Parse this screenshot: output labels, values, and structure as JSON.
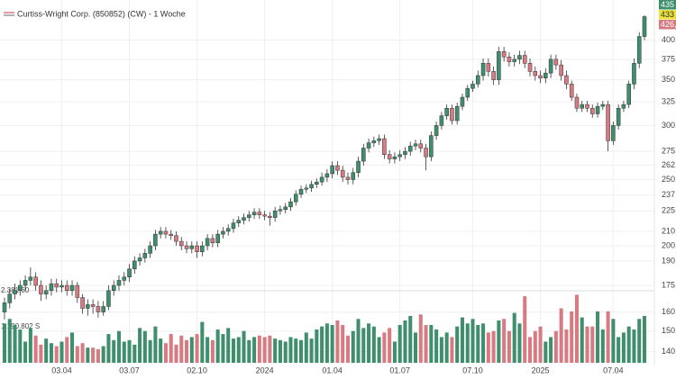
{
  "chart_data": {
    "type": "candlestick",
    "title": "Curtiss-Wright Corp. (850852) (CW) - 1 Woche",
    "categories": [
      null,
      null,
      null,
      null,
      null,
      null,
      null,
      null,
      null,
      null,
      null,
      "03.04",
      null,
      null,
      null,
      null,
      null,
      null,
      null,
      null,
      null,
      null,
      null,
      null,
      "03.07",
      null,
      null,
      null,
      null,
      null,
      null,
      null,
      null,
      null,
      null,
      null,
      null,
      "02.10",
      null,
      null,
      null,
      null,
      null,
      null,
      null,
      null,
      null,
      null,
      null,
      null,
      "2024",
      null,
      null,
      null,
      null,
      null,
      null,
      null,
      null,
      null,
      null,
      null,
      null,
      "01.04",
      null,
      null,
      null,
      null,
      null,
      null,
      null,
      null,
      null,
      null,
      null,
      null,
      "01.07",
      null,
      null,
      null,
      null,
      null,
      null,
      null,
      null,
      null,
      null,
      null,
      null,
      null,
      "07.10",
      null,
      null,
      null,
      null,
      null,
      null,
      null,
      null,
      null,
      null,
      null,
      null,
      "2025",
      null,
      null,
      null,
      null,
      null,
      null,
      null,
      null,
      null,
      null,
      null,
      null,
      null,
      "07.04",
      null,
      null,
      null,
      null,
      null,
      null
    ],
    "open": [
      160,
      165,
      170,
      172,
      175,
      178,
      180,
      175,
      170,
      172,
      176,
      174,
      175,
      172,
      175,
      168,
      162,
      164,
      163,
      160,
      163,
      172,
      175,
      178,
      180,
      185,
      190,
      192,
      195,
      200,
      208,
      210,
      208,
      207,
      203,
      200,
      198,
      200,
      196,
      200,
      205,
      202,
      208,
      210,
      212,
      216,
      218,
      220,
      222,
      224,
      222,
      221,
      220,
      225,
      226,
      228,
      232,
      238,
      242,
      243,
      246,
      248,
      252,
      255,
      262,
      258,
      252,
      250,
      256,
      266,
      278,
      283,
      285,
      287,
      272,
      268,
      270,
      272,
      275,
      280,
      282,
      278,
      270,
      290,
      300,
      310,
      318,
      305,
      320,
      330,
      340,
      345,
      355,
      370,
      360,
      350,
      385,
      378,
      372,
      375,
      380,
      370,
      360,
      355,
      352,
      358,
      375,
      368,
      355,
      345,
      330,
      318,
      322,
      318,
      312,
      320,
      322,
      285,
      300,
      318,
      322,
      345,
      370,
      405
    ],
    "high": [
      168,
      173,
      176,
      178,
      181,
      186,
      183,
      178,
      175,
      179,
      179,
      178,
      178,
      178,
      177,
      170,
      167,
      167,
      166,
      166,
      175,
      178,
      181,
      183,
      188,
      193,
      195,
      198,
      203,
      211,
      213,
      213,
      211,
      210,
      206,
      203,
      203,
      203,
      203,
      208,
      208,
      211,
      213,
      215,
      219,
      221,
      223,
      225,
      227,
      227,
      225,
      224,
      228,
      229,
      231,
      235,
      241,
      245,
      246,
      249,
      251,
      256,
      259,
      266,
      266,
      262,
      256,
      260,
      270,
      282,
      287,
      289,
      291,
      291,
      276,
      274,
      276,
      279,
      284,
      286,
      286,
      282,
      294,
      304,
      314,
      322,
      322,
      324,
      334,
      344,
      349,
      361,
      376,
      376,
      366,
      391,
      391,
      384,
      381,
      386,
      386,
      376,
      366,
      361,
      364,
      381,
      381,
      374,
      361,
      349,
      334,
      326,
      326,
      322,
      324,
      326,
      326,
      304,
      322,
      326,
      349,
      376,
      411,
      435
    ],
    "low": [
      156,
      162,
      167,
      169,
      172,
      175,
      172,
      166,
      167,
      169,
      171,
      171,
      169,
      169,
      165,
      159,
      158,
      159,
      157,
      158,
      161,
      169,
      172,
      175,
      177,
      182,
      187,
      189,
      192,
      197,
      205,
      205,
      204,
      200,
      197,
      195,
      195,
      192,
      193,
      197,
      199,
      199,
      205,
      207,
      209,
      213,
      215,
      217,
      219,
      219,
      218,
      214,
      217,
      222,
      223,
      225,
      229,
      235,
      239,
      240,
      243,
      245,
      248,
      251,
      254,
      248,
      246,
      246,
      252,
      262,
      274,
      279,
      281,
      268,
      264,
      264,
      266,
      268,
      271,
      276,
      274,
      258,
      266,
      286,
      296,
      306,
      301,
      301,
      316,
      326,
      336,
      341,
      349,
      354,
      344,
      344,
      372,
      366,
      366,
      369,
      364,
      354,
      349,
      346,
      346,
      352,
      362,
      349,
      339,
      326,
      314,
      314,
      314,
      308,
      308,
      316,
      275,
      281,
      296,
      314,
      318,
      339,
      364,
      400
    ],
    "close": [
      165,
      170,
      172,
      175,
      178,
      180,
      175,
      170,
      172,
      176,
      174,
      175,
      172,
      175,
      168,
      162,
      164,
      163,
      160,
      163,
      172,
      175,
      178,
      180,
      185,
      190,
      192,
      195,
      200,
      208,
      210,
      208,
      207,
      203,
      200,
      198,
      200,
      196,
      200,
      205,
      202,
      208,
      210,
      212,
      216,
      218,
      220,
      222,
      224,
      222,
      221,
      220,
      225,
      226,
      228,
      232,
      238,
      242,
      243,
      246,
      248,
      252,
      255,
      262,
      258,
      252,
      250,
      256,
      266,
      278,
      283,
      285,
      287,
      272,
      268,
      270,
      272,
      275,
      280,
      282,
      278,
      270,
      290,
      300,
      310,
      318,
      305,
      320,
      330,
      340,
      345,
      355,
      370,
      360,
      350,
      385,
      378,
      372,
      375,
      380,
      370,
      360,
      355,
      352,
      358,
      375,
      368,
      355,
      345,
      330,
      318,
      322,
      318,
      312,
      320,
      322,
      285,
      300,
      318,
      322,
      345,
      370,
      405,
      433
    ],
    "volume": [
      1300000,
      1450000,
      1250000,
      1100000,
      700000,
      1150000,
      900000,
      600000,
      800000,
      650000,
      550000,
      700000,
      850000,
      1000000,
      550000,
      650000,
      500000,
      500000,
      450000,
      550000,
      950000,
      750000,
      1050000,
      700000,
      750000,
      600000,
      1150000,
      1050000,
      750000,
      1200000,
      800000,
      650000,
      950000,
      600000,
      900000,
      750000,
      850000,
      950000,
      1350000,
      850000,
      750000,
      1100000,
      950000,
      1150000,
      800000,
      850000,
      1050000,
      750000,
      850000,
      900000,
      850000,
      900000,
      800000,
      750000,
      700000,
      850000,
      800000,
      750000,
      1000000,
      800000,
      1100000,
      1200000,
      1300000,
      1250000,
      1400000,
      1250000,
      900000,
      1050000,
      1450000,
      1150000,
      1300000,
      1200000,
      850000,
      1000000,
      1150000,
      700000,
      1250000,
      1400000,
      1550000,
      1000000,
      1600000,
      1250000,
      1250000,
      1100000,
      850000,
      1000000,
      850000,
      1200000,
      1500000,
      1300000,
      1450000,
      1250000,
      1300000,
      1000000,
      1050000,
      1400000,
      1450000,
      1050000,
      1650000,
      1300000,
      2200000,
      850000,
      1050000,
      1200000,
      700000,
      850000,
      1050000,
      1800000,
      1100000,
      1700000,
      2250000,
      1500000,
      1200000,
      1200000,
      1700000,
      1100000,
      1700000,
      1450000,
      850000,
      1000000,
      1200000,
      1100000,
      1450000,
      1550000
    ],
    "up_color": "#3f8f6e",
    "down_color": "#d77a82",
    "log_scale": true,
    "ylim": [
      134,
      458
    ],
    "yticks": [
      {
        "value": 400,
        "label": "400,"
      },
      {
        "value": 375,
        "label": "375,"
      },
      {
        "value": 350,
        "label": "350,"
      },
      {
        "value": 325,
        "label": "325,"
      },
      {
        "value": 300,
        "label": "300,"
      },
      {
        "value": 275,
        "label": "275,"
      },
      {
        "value": 262.5,
        "label": "262,5"
      },
      {
        "value": 250,
        "label": "250,"
      },
      {
        "value": 237.5,
        "label": "237,5"
      },
      {
        "value": 225,
        "label": "225,"
      },
      {
        "value": 210,
        "label": "210,"
      },
      {
        "value": 200,
        "label": "200,"
      },
      {
        "value": 190,
        "label": "190,"
      },
      {
        "value": 175,
        "label": "175,"
      },
      {
        "value": 160,
        "label": "160,"
      },
      {
        "value": 150,
        "label": "150,"
      },
      {
        "value": 140,
        "label": "140,"
      }
    ],
    "volume_lim": [
      0,
      2500000
    ],
    "volume_ticks": [
      {
        "value": 2381604,
        "label": "2.381.60"
      },
      {
        "value": 1190802,
        "label": "1.190.802 S"
      }
    ],
    "price_labels": [
      "435",
      "433",
      "426,"
    ],
    "grid": true
  }
}
